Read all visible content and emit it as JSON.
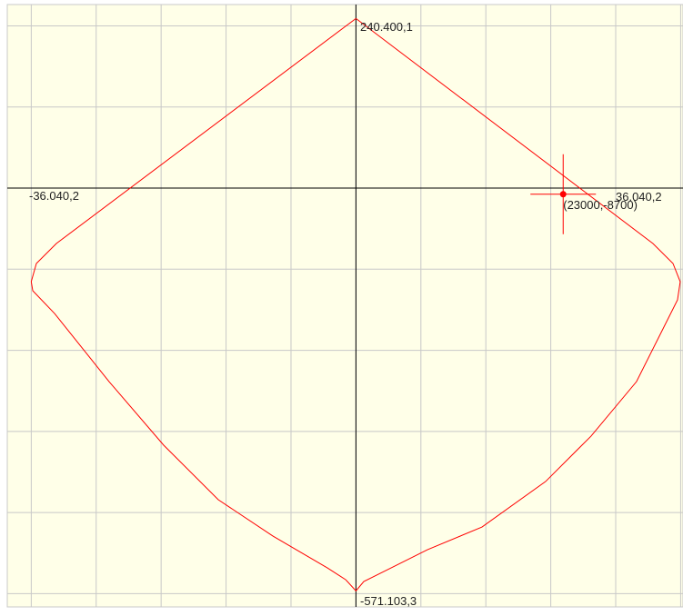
{
  "chart_data": {
    "type": "line",
    "grid": true,
    "xlim": [
      -38700,
      36300
    ],
    "ylim": [
      -593800,
      260200
    ],
    "xticks": [
      -36040,
      -28832,
      -21624,
      -14416,
      -7208,
      0,
      7208,
      14416,
      21624,
      28832,
      36040
    ],
    "yticks": [
      230000,
      115000,
      0,
      -115000,
      -230000,
      -345000,
      -460000,
      -575000
    ],
    "series": [
      {
        "color": "#ff0000",
        "x": [
          0,
          32960,
          35190,
          35990,
          35690,
          31140,
          26090,
          21040,
          13990,
          7930,
          3900,
          870,
          0,
          -1150,
          -3170,
          -9230,
          -15280,
          -21340,
          -27400,
          -33450,
          -35870,
          -36040.2,
          -35470,
          -33250,
          0
        ],
        "values": [
          240400.1,
          -78570,
          -106900,
          -132700,
          -158500,
          -274400,
          -351700,
          -416100,
          -480500,
          -512700,
          -538500,
          -557800,
          -571103.3,
          -555100,
          -538500,
          -493300,
          -441800,
          -364500,
          -274400,
          -177800,
          -145500,
          -132700,
          -106900,
          -78570,
          240400.1
        ]
      }
    ],
    "annotations": [
      "240.400,1",
      "-36.040,2",
      "36.040,2",
      "-571.103,3"
    ],
    "marker": {
      "x": 23000,
      "y": -8700,
      "label": "(23000,-8700)",
      "color": "#ff0000"
    }
  }
}
